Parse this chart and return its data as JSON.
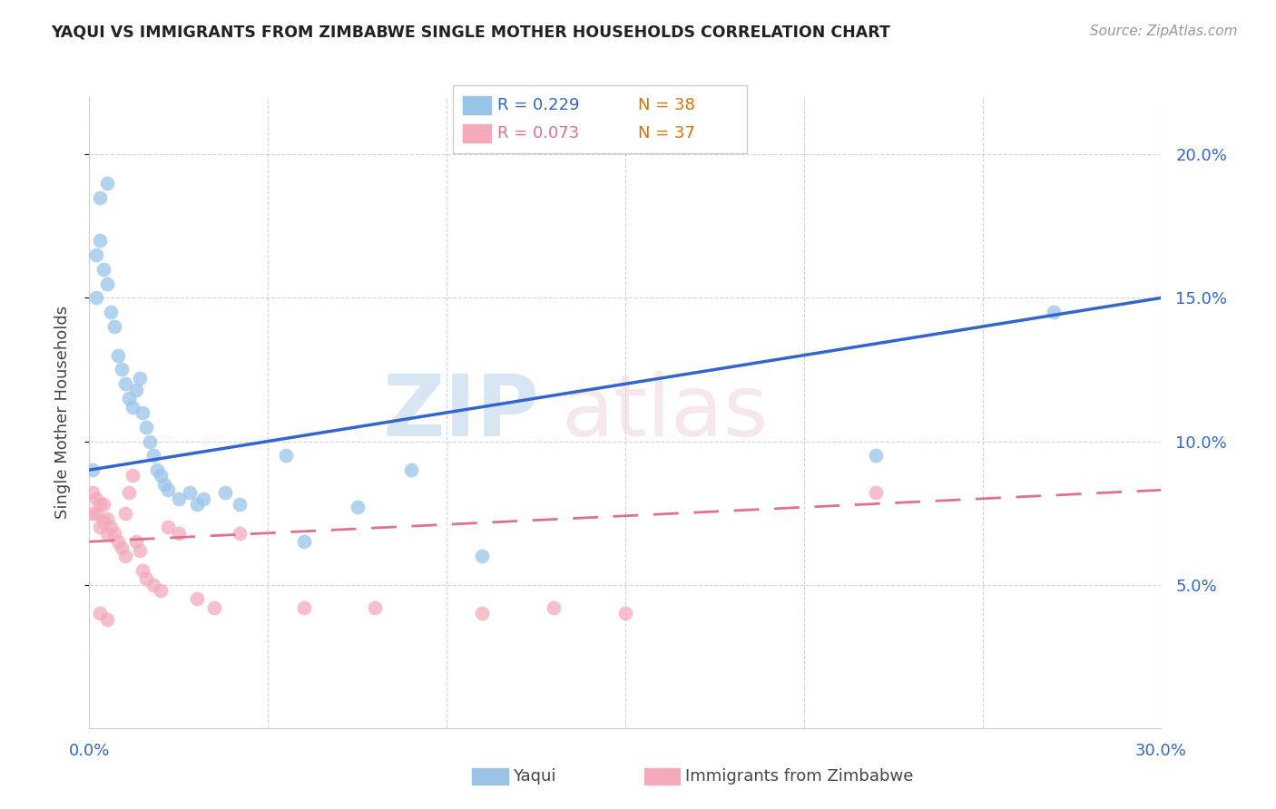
{
  "title": "YAQUI VS IMMIGRANTS FROM ZIMBABWE SINGLE MOTHER HOUSEHOLDS CORRELATION CHART",
  "source": "Source: ZipAtlas.com",
  "ylabel": "Single Mother Households",
  "right_yticks": [
    "20.0%",
    "15.0%",
    "10.0%",
    "5.0%"
  ],
  "right_ytick_vals": [
    0.2,
    0.15,
    0.1,
    0.05
  ],
  "legend_blue_r": "R = 0.229",
  "legend_blue_n": "N = 38",
  "legend_pink_r": "R = 0.073",
  "legend_pink_n": "N = 37",
  "blue_scatter_color": "#99C4E8",
  "pink_scatter_color": "#F4AABB",
  "line_blue_color": "#3366CC",
  "line_pink_color": "#E07090",
  "legend_r_blue": "#3366CC",
  "legend_n_color": "#E07000",
  "legend_r_pink": "#E07090",
  "background_color": "#FFFFFF",
  "grid_color": "#CCCCDD",
  "axis_label_color": "#3366CC",
  "title_color": "#222222",
  "source_color": "#999999",
  "ylabel_color": "#444444",
  "bottom_legend_color": "#444444",
  "blue_line_y0": 0.09,
  "blue_line_y1": 0.15,
  "pink_line_y0": 0.065,
  "pink_line_y1": 0.083,
  "xlim": [
    0,
    0.3
  ],
  "ylim": [
    0,
    0.22
  ],
  "yaqui_x": [
    0.001,
    0.002,
    0.002,
    0.003,
    0.004,
    0.005,
    0.006,
    0.007,
    0.008,
    0.009,
    0.01,
    0.011,
    0.012,
    0.013,
    0.014,
    0.015,
    0.016,
    0.017,
    0.018,
    0.019,
    0.02,
    0.021,
    0.022,
    0.025,
    0.028,
    0.03,
    0.032,
    0.038,
    0.042,
    0.055,
    0.06,
    0.075,
    0.09,
    0.11,
    0.22,
    0.27,
    0.003,
    0.005
  ],
  "yaqui_y": [
    0.09,
    0.15,
    0.165,
    0.17,
    0.16,
    0.155,
    0.145,
    0.14,
    0.13,
    0.125,
    0.12,
    0.115,
    0.112,
    0.118,
    0.122,
    0.11,
    0.105,
    0.1,
    0.095,
    0.09,
    0.088,
    0.085,
    0.083,
    0.08,
    0.082,
    0.078,
    0.08,
    0.082,
    0.078,
    0.095,
    0.065,
    0.077,
    0.09,
    0.06,
    0.095,
    0.145,
    0.185,
    0.19
  ],
  "zimb_x": [
    0.001,
    0.001,
    0.002,
    0.002,
    0.003,
    0.003,
    0.004,
    0.004,
    0.005,
    0.005,
    0.006,
    0.007,
    0.008,
    0.009,
    0.01,
    0.01,
    0.011,
    0.012,
    0.013,
    0.014,
    0.015,
    0.016,
    0.018,
    0.02,
    0.022,
    0.025,
    0.03,
    0.035,
    0.042,
    0.06,
    0.08,
    0.11,
    0.13,
    0.15,
    0.22,
    0.003,
    0.005
  ],
  "zimb_y": [
    0.075,
    0.082,
    0.075,
    0.08,
    0.07,
    0.078,
    0.072,
    0.078,
    0.068,
    0.073,
    0.07,
    0.068,
    0.065,
    0.063,
    0.06,
    0.075,
    0.082,
    0.088,
    0.065,
    0.062,
    0.055,
    0.052,
    0.05,
    0.048,
    0.07,
    0.068,
    0.045,
    0.042,
    0.068,
    0.042,
    0.042,
    0.04,
    0.042,
    0.04,
    0.082,
    0.04,
    0.038
  ]
}
